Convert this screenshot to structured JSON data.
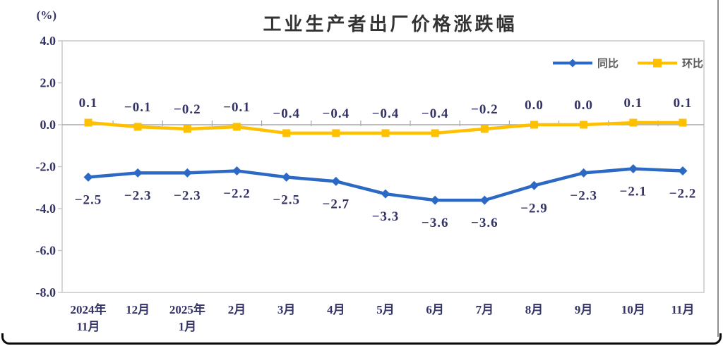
{
  "window": {
    "background": "#ffffff",
    "frame_border_color": "#0a0a0a",
    "right_edge_color": "#8f8f8f"
  },
  "chart_data": {
    "type": "line",
    "title": "工业生产者出厂价格涨跌幅",
    "unit_label": "(%)",
    "categories": [
      "2024年\n11月",
      "12月",
      "2025年\n1月",
      "2月",
      "3月",
      "4月",
      "5月",
      "6月",
      "7月",
      "8月",
      "9月",
      "10月",
      "11月"
    ],
    "series": [
      {
        "name": "同比",
        "color": "#2B69C4",
        "marker": "diamond",
        "label_position": "below",
        "values": [
          -2.5,
          -2.3,
          -2.3,
          -2.2,
          -2.5,
          -2.7,
          -3.3,
          -3.6,
          -3.6,
          -2.9,
          -2.3,
          -2.1,
          -2.2
        ]
      },
      {
        "name": "环比",
        "color": "#FFC000",
        "marker": "square",
        "label_position": "above",
        "values": [
          0.1,
          -0.1,
          -0.2,
          -0.1,
          -0.4,
          -0.4,
          -0.4,
          -0.4,
          -0.2,
          0.0,
          0.0,
          0.1,
          0.1
        ]
      }
    ],
    "ylim": [
      -8.0,
      4.0
    ],
    "ytick_step": 2.0,
    "yticks_labels": [
      "4.0",
      "2.0",
      "0.0",
      "-2.0",
      "-4.0",
      "-6.0",
      "-8.0"
    ],
    "legend_position": "top-right",
    "grid": false,
    "axis_color": "#c8c8c8",
    "zero_line_color": "#a8a8a8",
    "label_color": "#333366",
    "title_color": "#333333",
    "legend_text_color": "#595959"
  }
}
